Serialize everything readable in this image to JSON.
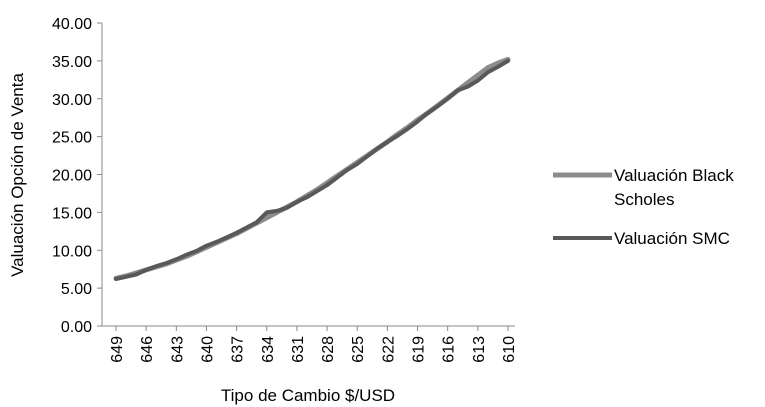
{
  "chart_data": {
    "type": "line",
    "xlabel": "Tipo de Cambio $/USD",
    "ylabel": "Valuación Opción de Venta",
    "ylim": [
      0,
      40
    ],
    "yticks": [
      "0.00",
      "5.00",
      "10.00",
      "15.00",
      "20.00",
      "25.00",
      "30.00",
      "35.00",
      "40.00"
    ],
    "x_tick_labels": [
      "649",
      "646",
      "643",
      "640",
      "637",
      "634",
      "631",
      "628",
      "625",
      "622",
      "619",
      "616",
      "613",
      "610"
    ],
    "x": [
      649,
      648,
      647,
      646,
      645,
      644,
      643,
      642,
      641,
      640,
      639,
      638,
      637,
      636,
      635,
      634,
      633,
      632,
      631,
      630,
      629,
      628,
      627,
      626,
      625,
      624,
      623,
      622,
      621,
      620,
      619,
      618,
      617,
      616,
      615,
      614,
      613,
      612,
      611,
      610
    ],
    "grid": false,
    "legend_position": "right",
    "colors": {
      "black_scholes": "#8c8c8c",
      "smc": "#595959"
    },
    "series": [
      {
        "name": "Valuación Black Scholes",
        "values": [
          6.3,
          6.6,
          7.0,
          7.4,
          7.8,
          8.2,
          8.7,
          9.2,
          9.8,
          10.4,
          11.0,
          11.6,
          12.2,
          12.9,
          13.6,
          14.3,
          15.0,
          15.7,
          16.4,
          17.2,
          18.0,
          18.9,
          19.8,
          20.7,
          21.6,
          22.5,
          23.4,
          24.3,
          25.3,
          26.2,
          27.2,
          28.1,
          29.1,
          30.1,
          31.1,
          32.1,
          33.1,
          34.1,
          34.7,
          35.2
        ]
      },
      {
        "name": "Valuación SMC",
        "values": [
          6.2,
          6.5,
          6.8,
          7.4,
          7.9,
          8.3,
          8.8,
          9.4,
          9.9,
          10.6,
          11.1,
          11.7,
          12.3,
          13.0,
          13.7,
          15.0,
          15.2,
          15.6,
          16.4,
          17.0,
          17.8,
          18.6,
          19.6,
          20.6,
          21.4,
          22.4,
          23.4,
          24.3,
          25.1,
          26.0,
          27.0,
          28.1,
          29.0,
          30.0,
          31.1,
          31.6,
          32.4,
          33.5,
          34.2,
          35.0
        ]
      }
    ]
  }
}
